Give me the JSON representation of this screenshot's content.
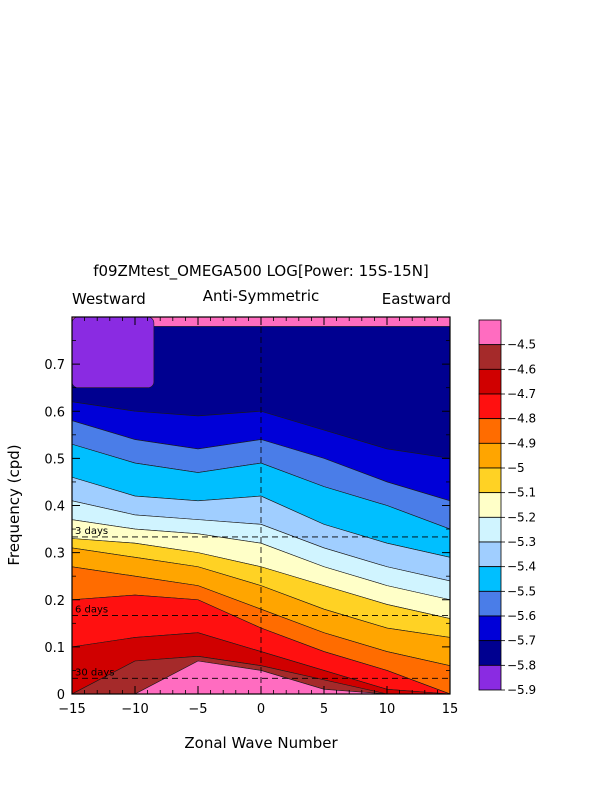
{
  "chart_data": {
    "type": "heatmap",
    "title": "f09ZMtest_OMEGA500 LOG[Power: 15S-15N]",
    "subtitle": "Anti-Symmetric",
    "left_label": "Westward",
    "right_label": "Eastward",
    "xlabel": "Zonal Wave Number",
    "ylabel": "Frequency (cpd)",
    "xlim": [
      -15,
      15
    ],
    "ylim": [
      0,
      0.8
    ],
    "x_ticks": [
      -15,
      -10,
      -5,
      0,
      5,
      10,
      15
    ],
    "y_ticks": [
      0,
      0.1,
      0.2,
      0.3,
      0.4,
      0.5,
      0.6,
      0.7
    ],
    "x_tick_labels": [
      "−15",
      "−10",
      "−5",
      "0",
      "5",
      "10",
      "15"
    ],
    "y_tick_labels": [
      "0",
      "0.1",
      "0.2",
      "0.3",
      "0.4",
      "0.5",
      "0.6",
      "0.7"
    ],
    "period_lines": [
      {
        "label": "3 days",
        "frequency": 0.3333
      },
      {
        "label": "6 days",
        "frequency": 0.1667
      },
      {
        "label": "30 days",
        "frequency": 0.0333
      }
    ],
    "colorbar": {
      "levels": [
        "−4.5",
        "−4.6",
        "−4.7",
        "−4.8",
        "−4.9",
        "−5",
        "−5.1",
        "−5.2",
        "−5.3",
        "−5.4",
        "−5.5",
        "−5.6",
        "−5.7",
        "−5.8",
        "−5.9"
      ],
      "colors": [
        "#ff6cc0",
        "#a52a2a",
        "#d00000",
        "#ff1010",
        "#ff6c00",
        "#ffa500",
        "#ffd224",
        "#ffffc8",
        "#d0f4ff",
        "#a0ceff",
        "#00bfff",
        "#4a7de8",
        "#0000d8",
        "#000090",
        "#8a2be2"
      ]
    },
    "bands": [
      {
        "level": "−5.9",
        "color": "#000090",
        "top": [
          0.78,
          0.78,
          0.78,
          0.78,
          0.78,
          0.78,
          0.78
        ],
        "bottom": [
          0.62,
          0.6,
          0.59,
          0.6,
          0.56,
          0.52,
          0.5
        ]
      },
      {
        "level": "−5.8",
        "color": "#0000d8",
        "top": [
          0.62,
          0.6,
          0.59,
          0.6,
          0.56,
          0.52,
          0.5
        ],
        "bottom": [
          0.58,
          0.54,
          0.52,
          0.54,
          0.5,
          0.45,
          0.41
        ]
      },
      {
        "level": "−5.7",
        "color": "#4a7de8",
        "top": [
          0.58,
          0.54,
          0.52,
          0.54,
          0.5,
          0.45,
          0.41
        ],
        "bottom": [
          0.53,
          0.49,
          0.47,
          0.49,
          0.44,
          0.4,
          0.35
        ]
      },
      {
        "level": "−5.6",
        "color": "#00bfff",
        "top": [
          0.53,
          0.49,
          0.47,
          0.49,
          0.44,
          0.4,
          0.35
        ],
        "bottom": [
          0.46,
          0.42,
          0.41,
          0.42,
          0.36,
          0.32,
          0.29
        ]
      },
      {
        "level": "−5.5",
        "color": "#a0ceff",
        "top": [
          0.46,
          0.42,
          0.41,
          0.42,
          0.36,
          0.32,
          0.29
        ],
        "bottom": [
          0.41,
          0.38,
          0.37,
          0.36,
          0.31,
          0.27,
          0.24
        ]
      },
      {
        "level": "−5.4",
        "color": "#d0f4ff",
        "top": [
          0.41,
          0.38,
          0.37,
          0.36,
          0.31,
          0.27,
          0.24
        ],
        "bottom": [
          0.37,
          0.35,
          0.34,
          0.32,
          0.27,
          0.23,
          0.2
        ]
      },
      {
        "level": "−5.3",
        "color": "#ffffc8",
        "top": [
          0.37,
          0.35,
          0.34,
          0.32,
          0.27,
          0.23,
          0.2
        ],
        "bottom": [
          0.33,
          0.32,
          0.3,
          0.27,
          0.23,
          0.19,
          0.16
        ]
      },
      {
        "level": "−5.2",
        "color": "#ffd224",
        "top": [
          0.33,
          0.32,
          0.3,
          0.27,
          0.23,
          0.19,
          0.16
        ],
        "bottom": [
          0.31,
          0.29,
          0.27,
          0.23,
          0.18,
          0.14,
          0.12
        ]
      },
      {
        "level": "−5.1",
        "color": "#ffa500",
        "top": [
          0.31,
          0.29,
          0.27,
          0.23,
          0.18,
          0.14,
          0.12
        ],
        "bottom": [
          0.27,
          0.25,
          0.23,
          0.18,
          0.13,
          0.09,
          0.06
        ]
      },
      {
        "level": "−5",
        "color": "#ff6c00",
        "top": [
          0.27,
          0.25,
          0.23,
          0.18,
          0.13,
          0.09,
          0.06
        ],
        "bottom": [
          0.2,
          0.21,
          0.2,
          0.14,
          0.09,
          0.05,
          0.0
        ]
      },
      {
        "level": "−4.9",
        "color": "#ff1010",
        "top": [
          0.2,
          0.21,
          0.2,
          0.14,
          0.09,
          0.05,
          0.0
        ],
        "bottom": [
          0.1,
          0.12,
          0.13,
          0.09,
          0.05,
          0.01,
          0.0
        ]
      },
      {
        "level": "−4.8",
        "color": "#d00000",
        "top": [
          0.1,
          0.12,
          0.13,
          0.09,
          0.05,
          0.01,
          0.0
        ],
        "bottom": [
          0.0,
          0.07,
          0.08,
          0.06,
          0.03,
          0.0,
          0.0
        ]
      },
      {
        "level": "−4.7",
        "color": "#a52a2a",
        "top": [
          0.0,
          0.07,
          0.08,
          0.06,
          0.03,
          0.0,
          0.0
        ],
        "bottom": [
          0.0,
          0.0,
          0.07,
          0.05,
          0.01,
          0.0,
          0.0
        ]
      },
      {
        "level": "−4.6",
        "color": "#ff6cc0",
        "top": [
          0.0,
          0.0,
          0.07,
          0.05,
          0.01,
          0.0,
          0.0
        ],
        "bottom": [
          0.0,
          0.0,
          0.0,
          0.0,
          0.0,
          0.0,
          0.0
        ]
      }
    ],
    "purple_patch": {
      "level": "−5.9",
      "color": "#8a2be2",
      "x_range": [
        -15,
        -8.5
      ],
      "y_range": [
        0.65,
        0.8
      ]
    }
  }
}
